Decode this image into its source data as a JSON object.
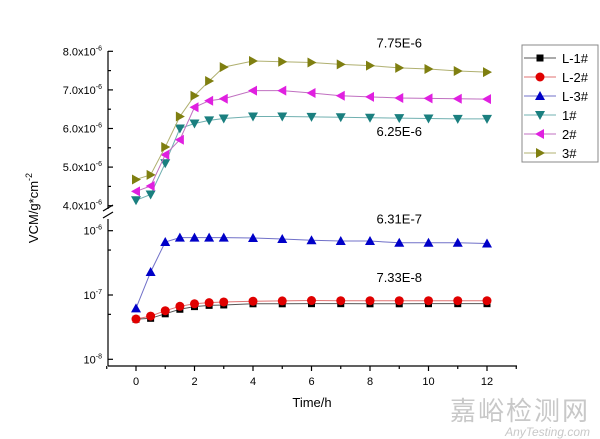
{
  "chart_data": {
    "type": "line",
    "xlabel": "Time/h",
    "ylabel": {
      "base": "VCM/g*cm",
      "exp": "-2"
    },
    "x": [
      0,
      0.5,
      1,
      1.5,
      2,
      2.5,
      3,
      4,
      5,
      6,
      7,
      8,
      9,
      10,
      11,
      12
    ],
    "xlim": [
      -1,
      13
    ],
    "x_ticks": [
      "0",
      "2",
      "4",
      "6",
      "8",
      "10",
      "12"
    ],
    "y_axis_break": true,
    "upper_panel": {
      "scale": "linear",
      "ylim": [
        4e-06,
        8e-06
      ],
      "ticks": [
        {
          "value": 8e-06,
          "base": "8.0x10",
          "exp": "-6"
        },
        {
          "value": 7e-06,
          "base": "7.0x10",
          "exp": "-6"
        },
        {
          "value": 6e-06,
          "base": "6.0x10",
          "exp": "-6"
        },
        {
          "value": 5e-06,
          "base": "5.0x10",
          "exp": "-6"
        },
        {
          "value": 4e-06,
          "base": "4.0x10",
          "exp": "-6"
        }
      ]
    },
    "lower_panel": {
      "scale": "log",
      "ylim": [
        1e-08,
        1.3e-06
      ],
      "ticks": [
        {
          "value": 1e-06,
          "base": "10",
          "exp": "-6"
        },
        {
          "value": 1e-07,
          "base": "10",
          "exp": "-7"
        },
        {
          "value": 1e-08,
          "base": "10",
          "exp": "-8"
        }
      ]
    },
    "grid": false,
    "legend_position": "right",
    "series": [
      {
        "name": "L-1#",
        "panel": "lower",
        "marker": "square",
        "color": "#000000",
        "line_color": "#555555",
        "values": [
          4.2e-08,
          4.34e-08,
          5.1e-08,
          6e-08,
          6.6e-08,
          6.9e-08,
          7e-08,
          7.3e-08,
          7.3e-08,
          7.33e-08,
          7.33e-08,
          7.3e-08,
          7.3e-08,
          7.33e-08,
          7.33e-08,
          7.33e-08
        ]
      },
      {
        "name": "L-2#",
        "panel": "lower",
        "marker": "circle",
        "color": "#e00000",
        "line_color": "#e07070",
        "values": [
          4.23e-08,
          4.7e-08,
          5.7e-08,
          6.67e-08,
          7.3e-08,
          7.6e-08,
          7.8e-08,
          8e-08,
          8.1e-08,
          8.2e-08,
          8.15e-08,
          8.15e-08,
          8.15e-08,
          8.15e-08,
          8.15e-08,
          8.15e-08
        ]
      },
      {
        "name": "L-3#",
        "panel": "lower",
        "marker": "triangle-up",
        "color": "#0000c8",
        "line_color": "#7070c8",
        "values": [
          6.2e-08,
          2.28e-07,
          6.67e-07,
          7.8e-07,
          7.8e-07,
          7.8e-07,
          7.8e-07,
          7.7e-07,
          7.43e-07,
          7.1e-07,
          6.9e-07,
          6.9e-07,
          6.5e-07,
          6.5e-07,
          6.5e-07,
          6.31e-07
        ]
      },
      {
        "name": "1#",
        "panel": "upper",
        "marker": "triangle-down",
        "color": "#1a7f7f",
        "line_color": "#70b0b0",
        "values": [
          4.14e-06,
          4.29e-06,
          5.1e-06,
          6e-06,
          6.13e-06,
          6.21e-06,
          6.26e-06,
          6.31e-06,
          6.31e-06,
          6.3e-06,
          6.29e-06,
          6.28e-06,
          6.27e-06,
          6.26e-06,
          6.25e-06,
          6.25e-06
        ]
      },
      {
        "name": "2#",
        "panel": "upper",
        "marker": "triangle-left",
        "color": "#e020e0",
        "line_color": "#c070c0",
        "values": [
          4.37e-06,
          4.51e-06,
          5.32e-06,
          5.71e-06,
          6.55e-06,
          6.72e-06,
          6.77e-06,
          6.98e-06,
          6.98e-06,
          6.92e-06,
          6.85e-06,
          6.82e-06,
          6.79e-06,
          6.78e-06,
          6.77e-06,
          6.76e-06
        ]
      },
      {
        "name": "3#",
        "panel": "upper",
        "marker": "triangle-right",
        "color": "#7f7f10",
        "line_color": "#b0b070",
        "values": [
          4.68e-06,
          4.8e-06,
          5.52e-06,
          6.31e-06,
          6.85e-06,
          7.23e-06,
          7.59e-06,
          7.75e-06,
          7.73e-06,
          7.71e-06,
          7.66e-06,
          7.63e-06,
          7.57e-06,
          7.54e-06,
          7.49e-06,
          7.46e-06
        ]
      }
    ],
    "annotations": [
      {
        "text": "7.75E-6",
        "x": 9,
        "y": 8.1e-06,
        "panel": "upper"
      },
      {
        "text": "6.25E-6",
        "x": 9,
        "y": 5.8e-06,
        "panel": "upper"
      },
      {
        "text": "6.31E-7",
        "x": 9,
        "y": 1.3e-06,
        "panel": "lower"
      },
      {
        "text": "7.33E-8",
        "x": 9,
        "y": 1.6e-07,
        "panel": "lower"
      }
    ]
  },
  "watermark": {
    "cn": "嘉峪检测网",
    "en": "AnyTesting.com"
  }
}
